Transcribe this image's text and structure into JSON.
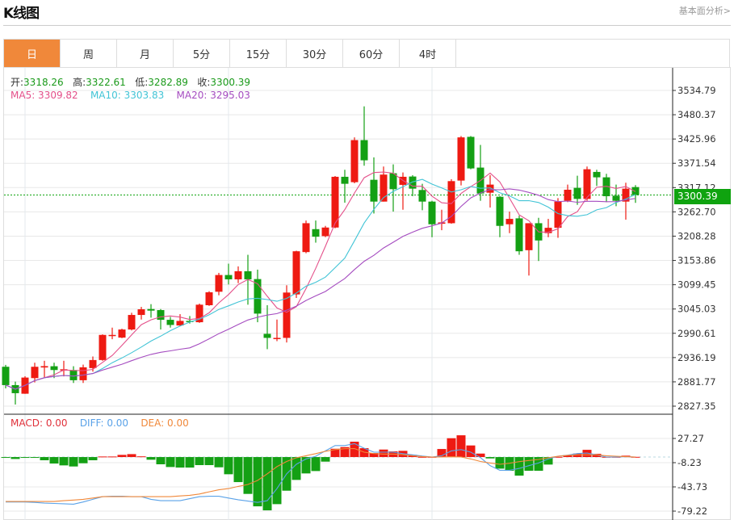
{
  "header": {
    "title": "K线图",
    "fundamental_link": "基本面分析>"
  },
  "tabs": [
    {
      "label": "日",
      "active": true
    },
    {
      "label": "周",
      "active": false
    },
    {
      "label": "月",
      "active": false
    },
    {
      "label": "5分",
      "active": false
    },
    {
      "label": "15分",
      "active": false
    },
    {
      "label": "30分",
      "active": false
    },
    {
      "label": "60分",
      "active": false
    },
    {
      "label": "4时",
      "active": false
    }
  ],
  "ohlc_legend": {
    "open_label": "开:",
    "open": "3318.26",
    "high_label": "高:",
    "high": "3322.61",
    "low_label": "低:",
    "low": "3282.89",
    "close_label": "收:",
    "close": "3300.39"
  },
  "ma_legend": {
    "ma5": "MA5: 3309.82",
    "ma10": "MA10: 3303.83",
    "ma20": "MA20: 3295.03"
  },
  "macd_legend": {
    "macd": "MACD: 0.00",
    "diff": "DIFF: 0.00",
    "dea": "DEA: 0.00"
  },
  "current_price": "3300.39",
  "colors": {
    "up": "#ee1a12",
    "down": "#14a014",
    "ma5": "#e4508a",
    "ma10": "#42c4d6",
    "ma20": "#a54cc0",
    "diff": "#5aa2e8",
    "dea": "#f0883a",
    "accent": "#f0883a",
    "price_tag": "#0fa30f"
  },
  "chart_data": [
    {
      "type": "candlestick",
      "title": "",
      "yticks": [
        "3534.79",
        "3480.37",
        "3425.96",
        "3371.54",
        "3317.12",
        "3262.70",
        "3208.28",
        "3153.86",
        "3099.45",
        "3045.03",
        "2990.61",
        "2936.19",
        "2881.77",
        "2827.35"
      ],
      "ylim": [
        2827.35,
        3534.79
      ],
      "grid": true,
      "series_names": [
        "MA5",
        "MA10",
        "MA20"
      ],
      "ohlc": [
        [
          2915.6,
          2919.8,
          2867.2,
          2874.5
        ],
        [
          2874.5,
          2882.3,
          2831.0,
          2856.4
        ],
        [
          2855.2,
          2894.4,
          2855.0,
          2891.4
        ],
        [
          2890.2,
          2924.7,
          2880.5,
          2915.6
        ],
        [
          2914.0,
          2929.0,
          2891.0,
          2917.0
        ],
        [
          2916.8,
          2924.7,
          2890.2,
          2908.3
        ],
        [
          2909.0,
          2929.0,
          2894.0,
          2910.0
        ],
        [
          2908.3,
          2916.8,
          2879.3,
          2885.4
        ],
        [
          2885.4,
          2920.4,
          2879.3,
          2914.4
        ],
        [
          2912.6,
          2938.6,
          2904.7,
          2930.7
        ],
        [
          2930.7,
          2988.2,
          2929.0,
          2987.0
        ],
        [
          2984.5,
          3003.3,
          2977.3,
          2987.0
        ],
        [
          2980.9,
          3000.9,
          2979.7,
          2999.1
        ],
        [
          2999.1,
          3036.6,
          2997.0,
          3031.7
        ],
        [
          3031.7,
          3049.8,
          3021.4,
          3044.4
        ],
        [
          3045.0,
          3055.9,
          3025.6,
          3041.4
        ],
        [
          3042.6,
          3045.0,
          2999.1,
          3020.8
        ],
        [
          3020.8,
          3027.4,
          3003.3,
          3009.3
        ],
        [
          3008.1,
          3033.5,
          3006.3,
          3018.4
        ],
        [
          3018.4,
          3029.3,
          3012.4,
          3017.2
        ],
        [
          3015.4,
          3057.1,
          3014.0,
          3054.7
        ],
        [
          3053.5,
          3084.9,
          3052.0,
          3082.5
        ],
        [
          3083.7,
          3126.0,
          3075.8,
          3121.2
        ],
        [
          3121.2,
          3146.6,
          3100.0,
          3111.5
        ],
        [
          3111.5,
          3140.5,
          3103.0,
          3129.7
        ],
        [
          3129.7,
          3166.5,
          3054.7,
          3111.5
        ],
        [
          3112.1,
          3133.3,
          3015.4,
          3034.7
        ],
        [
          2989.4,
          3053.5,
          2955.0,
          2980.3
        ],
        [
          2978.5,
          3021.4,
          2973.0,
          2980.3
        ],
        [
          2980.3,
          3098.2,
          2970.0,
          3081.9
        ],
        [
          3077.7,
          3175.6,
          3069.8,
          3174.4
        ],
        [
          3172.6,
          3243.3,
          3170.0,
          3237.3
        ],
        [
          3224.0,
          3243.3,
          3193.7,
          3207.0
        ],
        [
          3208.3,
          3231.3,
          3206.0,
          3227.6
        ],
        [
          3227.6,
          3343.0,
          3226.0,
          3341.3
        ],
        [
          3341.3,
          3357.0,
          3283.3,
          3325.6
        ],
        [
          3329.2,
          3429.6,
          3326.8,
          3423.5
        ],
        [
          3423.5,
          3499.1,
          3366.1,
          3378.2
        ],
        [
          3334.6,
          3384.8,
          3259.0,
          3285.7
        ],
        [
          3285.7,
          3364.3,
          3285.7,
          3346.2
        ],
        [
          3349.2,
          3369.1,
          3263.3,
          3313.5
        ],
        [
          3323.2,
          3351.0,
          3267.5,
          3341.3
        ],
        [
          3341.9,
          3344.9,
          3297.8,
          3314.7
        ],
        [
          3311.7,
          3325.6,
          3266.3,
          3285.7
        ],
        [
          3285.7,
          3287.5,
          3205.9,
          3234.9
        ],
        [
          3236.1,
          3267.5,
          3221.6,
          3239.1
        ],
        [
          3237.3,
          3335.9,
          3236.1,
          3331.6
        ],
        [
          3332.8,
          3432.6,
          3322.0,
          3429.6
        ],
        [
          3430.8,
          3432.6,
          3358.2,
          3360.0
        ],
        [
          3361.9,
          3412.7,
          3287.5,
          3303.8
        ],
        [
          3305.6,
          3345.0,
          3272.4,
          3323.8
        ],
        [
          3296.6,
          3297.8,
          3205.9,
          3231.3
        ],
        [
          3234.9,
          3263.3,
          3215.0,
          3247.0
        ],
        [
          3248.2,
          3254.2,
          3166.5,
          3174.4
        ],
        [
          3176.8,
          3237.3,
          3120.0,
          3237.3
        ],
        [
          3237.3,
          3249.4,
          3152.6,
          3198.6
        ],
        [
          3215.0,
          3247.0,
          3205.9,
          3227.0
        ],
        [
          3227.0,
          3293.5,
          3204.6,
          3285.7
        ],
        [
          3287.5,
          3323.8,
          3284.5,
          3312.3
        ],
        [
          3316.5,
          3343.7,
          3278.4,
          3291.7
        ],
        [
          3291.7,
          3364.3,
          3287.5,
          3358.2
        ],
        [
          3352.2,
          3357.0,
          3320.7,
          3340.1
        ],
        [
          3340.1,
          3348.0,
          3284.5,
          3297.8
        ],
        [
          3299.0,
          3323.8,
          3275.4,
          3287.5
        ],
        [
          3285.7,
          3328.0,
          3245.2,
          3314.7
        ],
        [
          3318.26,
          3322.61,
          3282.89,
          3300.39
        ]
      ]
    },
    {
      "type": "bar",
      "title": "",
      "yticks": [
        "27.27",
        "-8.23",
        "-43.73",
        "-79.22"
      ],
      "ylim": [
        -79.22,
        27.27
      ],
      "series": [
        {
          "name": "MACD",
          "values": [
            -1,
            -2.8,
            -0.5,
            -0.5,
            -4.7,
            -9.5,
            -12.2,
            -13.8,
            -9.1,
            -4.7,
            0.8,
            0.8,
            3.2,
            4.3,
            1,
            -3.9,
            -10.6,
            -14.6,
            -15.4,
            -15.4,
            -11.8,
            -11.8,
            -15,
            -25.2,
            -36.7,
            -54,
            -72.2,
            -78.1,
            -69,
            -49.3,
            -33.5,
            -24,
            -20.5,
            -6.7,
            12.2,
            14.6,
            22.5,
            13,
            5.9,
            11,
            8.3,
            9.1,
            3.2,
            0.3,
            0.3,
            11.8,
            27.6,
            31.9,
            17,
            5.1,
            -2,
            -17,
            -20.1,
            -27.2,
            -20.1,
            -20.1,
            -11,
            0.3,
            2.8,
            5.1,
            10.6,
            4.7,
            0.3,
            0.3,
            2,
            0.3
          ]
        },
        {
          "name": "DIFF",
          "values": [
            -65.9,
            -65.9,
            -65.9,
            -66.5,
            -67.5,
            -68,
            -68.5,
            -69,
            -65.9,
            -62,
            -58,
            -57.5,
            -57.5,
            -58,
            -58,
            -62,
            -64,
            -64,
            -64,
            -61,
            -58,
            -57.5,
            -57.5,
            -60,
            -62.5,
            -64.5,
            -66.5,
            -64,
            -46.2,
            -24.5,
            -10.6,
            -2.8,
            1.2,
            9.1,
            16.9,
            16.9,
            19.7,
            13,
            7.1,
            7.1,
            7.1,
            5,
            3.2,
            1.5,
            0,
            2,
            9.1,
            11,
            7.1,
            -0.8,
            -12.6,
            -19.3,
            -19.3,
            -16.6,
            -12.6,
            -8.7,
            -2.8,
            1.2,
            2.8,
            5.1,
            5.9,
            3.2,
            0,
            0,
            0.5,
            0
          ]
        },
        {
          "name": "DEA",
          "values": [
            -65.1,
            -65.1,
            -65.1,
            -65.1,
            -65.1,
            -65.1,
            -64,
            -63,
            -62,
            -60,
            -58,
            -58,
            -58,
            -58,
            -58,
            -58,
            -58,
            -58,
            -57,
            -56,
            -54.1,
            -51,
            -48,
            -46.2,
            -43,
            -40.2,
            -34.3,
            -24.5,
            -14,
            -6.5,
            -1,
            2,
            5,
            8.5,
            11,
            12.2,
            12.5,
            7.1,
            5.1,
            4.3,
            4.3,
            3.5,
            2,
            0.8,
            0,
            0.2,
            0.4,
            0.2,
            -2.8,
            -6.5,
            -8.7,
            -10.6,
            -9,
            -6.7,
            -5,
            -3.5,
            -1,
            1.2,
            2.5,
            3.2,
            3.2,
            3.2,
            2,
            1.2,
            0.5,
            0
          ]
        }
      ]
    }
  ]
}
